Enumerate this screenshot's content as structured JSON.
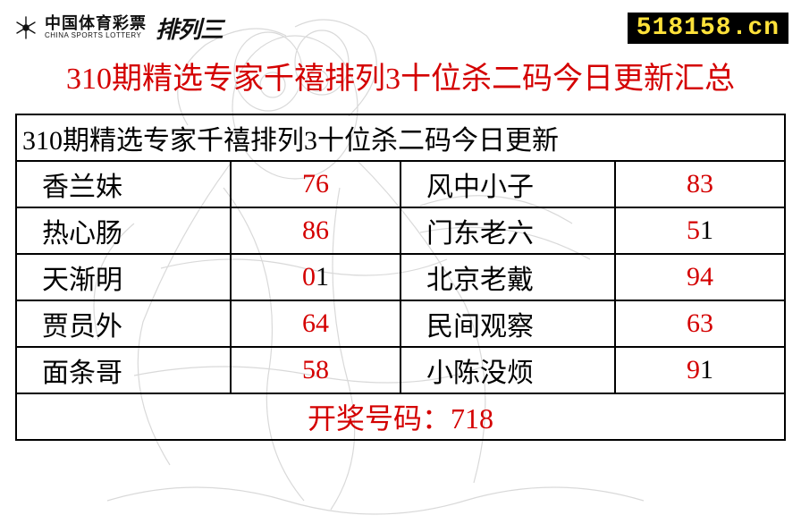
{
  "brand": {
    "cn": "中国体育彩票",
    "en": "CHINA SPORTS LOTTERY",
    "product": "排列三"
  },
  "site_badge": "518158.cn",
  "headline": "310期精选专家千禧排列3十位杀二码今日更新汇总",
  "table": {
    "header": "310期精选专家千禧排列3十位杀二码今日更新",
    "rows": [
      {
        "name_a": "香兰妹",
        "num_a": {
          "d1": "7",
          "c1": "red",
          "d2": "6",
          "c2": "red"
        },
        "name_b": "风中小子",
        "num_b": {
          "d1": "8",
          "c1": "red",
          "d2": "3",
          "c2": "red"
        }
      },
      {
        "name_a": "热心肠",
        "num_a": {
          "d1": "8",
          "c1": "red",
          "d2": "6",
          "c2": "red"
        },
        "name_b": "门东老六",
        "num_b": {
          "d1": "5",
          "c1": "red",
          "d2": "1",
          "c2": "black"
        }
      },
      {
        "name_a": "天渐明",
        "num_a": {
          "d1": "0",
          "c1": "red",
          "d2": "1",
          "c2": "black"
        },
        "name_b": "北京老戴",
        "num_b": {
          "d1": "9",
          "c1": "red",
          "d2": "4",
          "c2": "red"
        }
      },
      {
        "name_a": "贾员外",
        "num_a": {
          "d1": "6",
          "c1": "red",
          "d2": "4",
          "c2": "red"
        },
        "name_b": "民间观察",
        "num_b": {
          "d1": "6",
          "c1": "red",
          "d2": "3",
          "c2": "red"
        }
      },
      {
        "name_a": "面条哥",
        "num_a": {
          "d1": "5",
          "c1": "red",
          "d2": "8",
          "c2": "red"
        },
        "name_b": "小陈没烦",
        "num_b": {
          "d1": "9",
          "c1": "red",
          "d2": "1",
          "c2": "black"
        }
      }
    ],
    "footer_label": "开奖号码：",
    "footer_value": "718"
  },
  "colors": {
    "red": "#d40000",
    "black": "#000000",
    "badge_bg": "#000000",
    "badge_text": "#ffe23a",
    "bg": "#ffffff"
  }
}
